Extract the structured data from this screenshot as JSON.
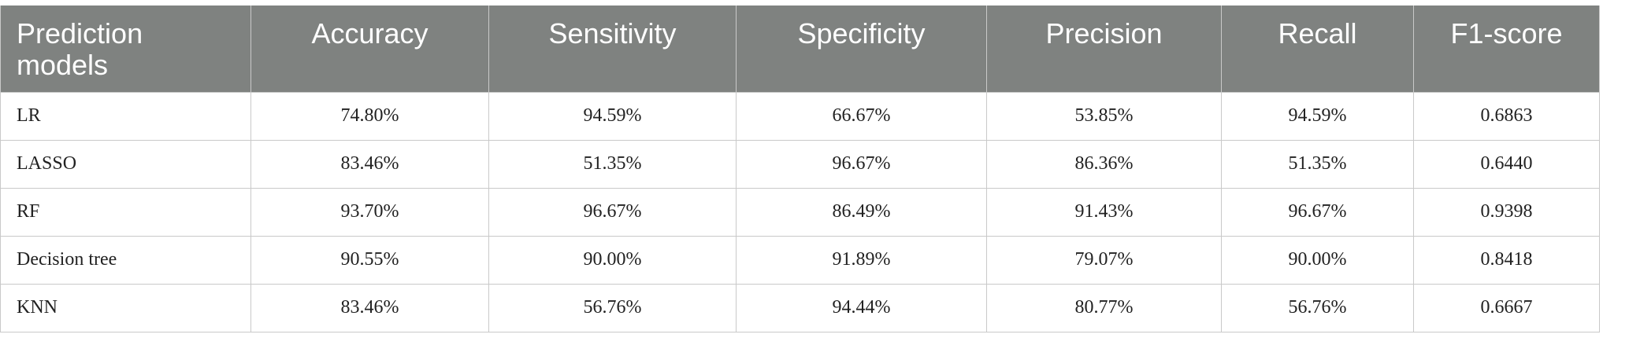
{
  "table": {
    "headers": [
      "Prediction models",
      "Accuracy",
      "Sensitivity",
      "Specificity",
      "Precision",
      "Recall",
      "F1-score"
    ],
    "rows": [
      [
        "LR",
        "74.80%",
        "94.59%",
        "66.67%",
        "53.85%",
        "94.59%",
        "0.6863"
      ],
      [
        "LASSO",
        "83.46%",
        "51.35%",
        "96.67%",
        "86.36%",
        "51.35%",
        "0.6440"
      ],
      [
        "RF",
        "93.70%",
        "96.67%",
        "86.49%",
        "91.43%",
        "96.67%",
        "0.9398"
      ],
      [
        "Decision tree",
        "90.55%",
        "90.00%",
        "91.89%",
        "79.07%",
        "90.00%",
        "0.8418"
      ],
      [
        "KNN",
        "83.46%",
        "56.76%",
        "94.44%",
        "80.77%",
        "56.76%",
        "0.6667"
      ]
    ]
  },
  "colors": {
    "header_background": "#7f8280",
    "header_text": "#ffffff",
    "grid_line": "#c9c9c9"
  }
}
